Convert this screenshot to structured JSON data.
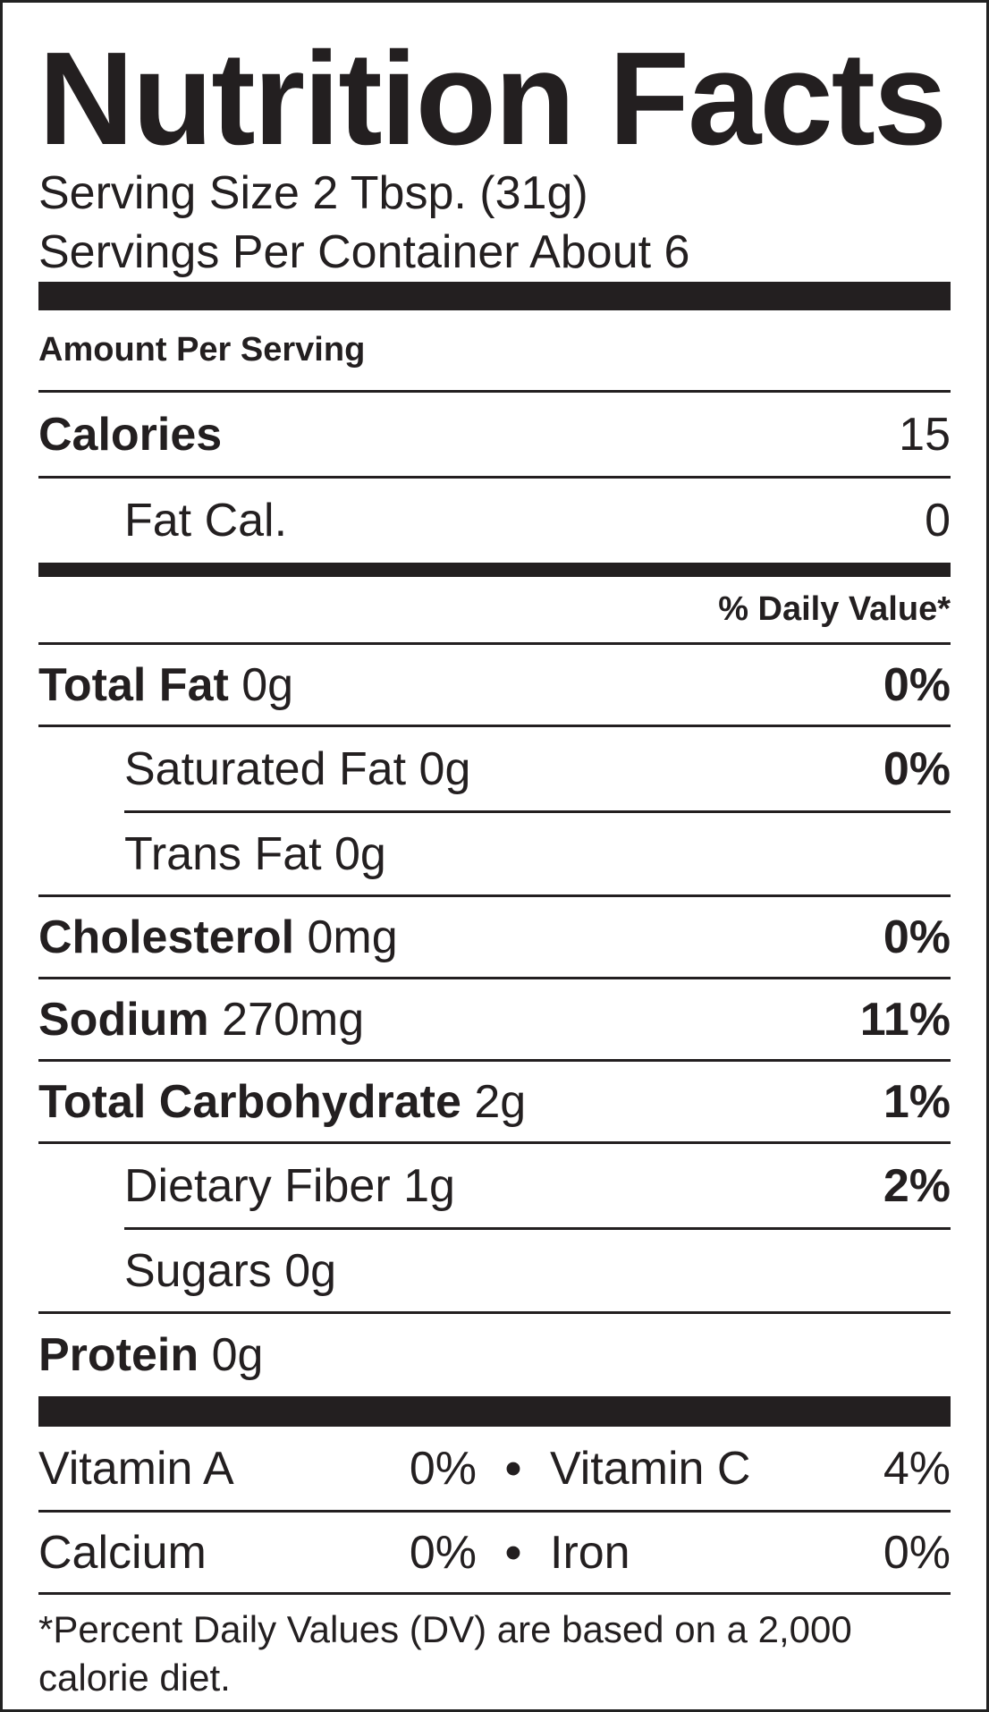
{
  "title": "Nutrition Facts",
  "serving_size": "Serving Size 2 Tbsp. (31g)",
  "servings_per_container": "Servings Per Container About 6",
  "amount_per_serving": "Amount Per Serving",
  "calories": {
    "label": "Calories",
    "value": "15"
  },
  "fat_calories": {
    "label": "Fat Cal.",
    "value": "0"
  },
  "daily_value_header": "% Daily Value*",
  "nutrients": {
    "total_fat": {
      "label": "Total Fat",
      "amount": "0g",
      "dv": "0%"
    },
    "saturated_fat": {
      "label": "Saturated Fat 0g",
      "dv": "0%"
    },
    "trans_fat": {
      "label": "Trans Fat 0g"
    },
    "cholesterol": {
      "label": "Cholesterol",
      "amount": "0mg",
      "dv": "0%"
    },
    "sodium": {
      "label": "Sodium",
      "amount": "270mg",
      "dv": "11%"
    },
    "total_carbohydrate": {
      "label": "Total Carbohydrate",
      "amount": "2g",
      "dv": "1%"
    },
    "dietary_fiber": {
      "label": "Dietary Fiber 1g",
      "dv": "2%"
    },
    "sugars": {
      "label": "Sugars 0g"
    },
    "protein": {
      "label": "Protein",
      "amount": "0g"
    }
  },
  "vitamins": {
    "row1": {
      "name1": "Vitamin A",
      "pct1": "0%",
      "sep": "•",
      "name2": "Vitamin C",
      "pct2": "4%"
    },
    "row2": {
      "name1": "Calcium",
      "pct1": "0%",
      "sep": "•",
      "name2": "Iron",
      "pct2": "0%"
    }
  },
  "footnote": "*Percent Daily Values (DV) are based on a 2,000 calorie diet.",
  "colors": {
    "ink": "#231f20",
    "background": "#ffffff"
  }
}
